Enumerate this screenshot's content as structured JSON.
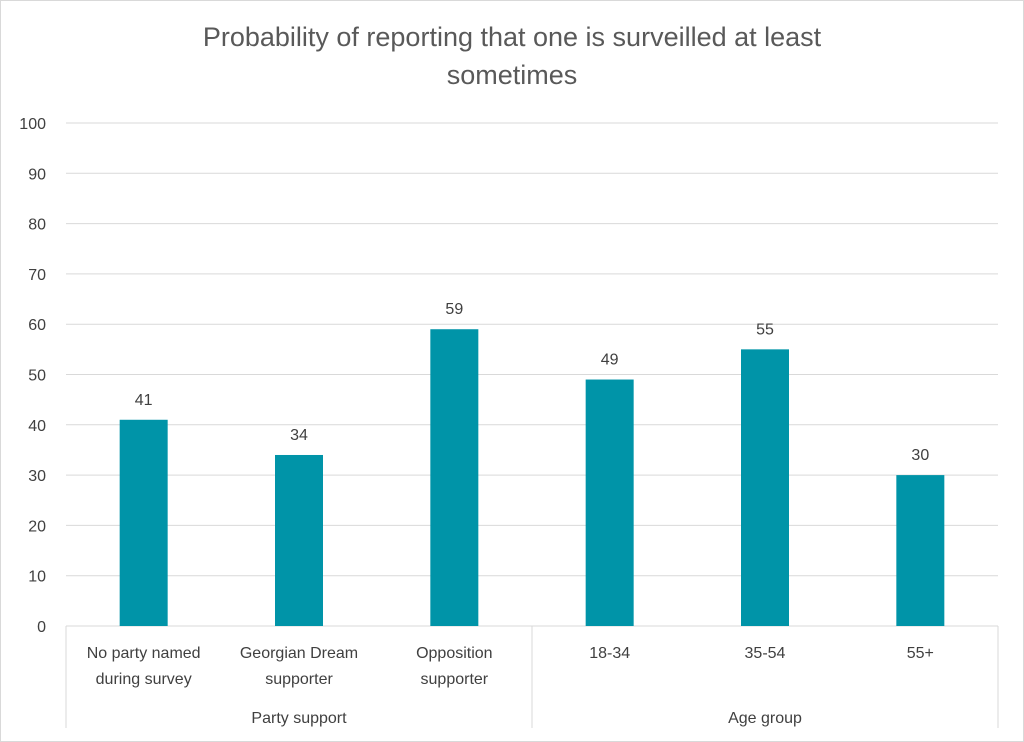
{
  "chart_data": {
    "type": "bar",
    "title_lines": [
      "Probability of reporting that one is surveilled at least",
      "sometimes"
    ],
    "categories": [
      [
        "No party named",
        "during survey"
      ],
      [
        "Georgian Dream",
        "supporter"
      ],
      [
        "Opposition",
        "supporter"
      ],
      [
        "18-34"
      ],
      [
        "35-54"
      ],
      [
        "55+"
      ]
    ],
    "groups": [
      {
        "label": "Party support",
        "span": 3
      },
      {
        "label": "Age group",
        "span": 3
      }
    ],
    "values": [
      41,
      34,
      59,
      49,
      55,
      30
    ],
    "ylim": [
      0,
      100
    ],
    "yticks": [
      0,
      10,
      20,
      30,
      40,
      50,
      60,
      70,
      80,
      90,
      100
    ],
    "grid": true,
    "bar_color": "#0094a8",
    "data_labels": true
  }
}
